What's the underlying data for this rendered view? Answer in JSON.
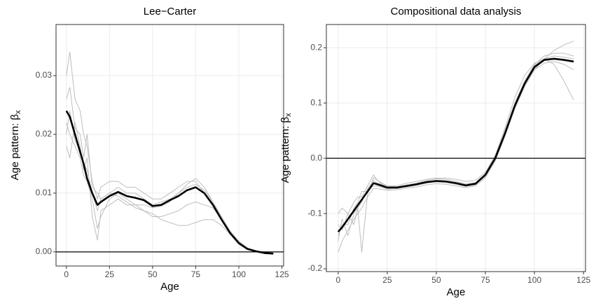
{
  "chart_data": [
    {
      "type": "line",
      "title": "Lee−Carter",
      "x_label": "Age",
      "y_label": "Age pattern:  β",
      "y_label_subscript": "x",
      "x": [
        0,
        2,
        5,
        8,
        10,
        12,
        15,
        18,
        20,
        25,
        30,
        35,
        40,
        45,
        50,
        55,
        60,
        65,
        70,
        75,
        80,
        85,
        90,
        95,
        100,
        105,
        110,
        115,
        120
      ],
      "xlim": [
        -6,
        126
      ],
      "ylim": [
        -0.0024,
        0.0387
      ],
      "xticks": [
        0,
        25,
        50,
        75,
        100,
        125
      ],
      "yticks": [
        {
          "value": 0,
          "label": "0.00"
        },
        0.01,
        0.02,
        0.03
      ],
      "hline": 0,
      "grid": true,
      "series": [
        {
          "color": "#bebebe",
          "line_width": 1,
          "values": [
            0.03,
            0.034,
            0.026,
            0.024,
            0.02,
            0.018,
            0.012,
            0.009,
            0.011,
            0.012,
            0.012,
            0.011,
            0.011,
            0.01,
            0.009,
            0.009,
            0.01,
            0.011,
            0.012,
            0.012,
            0.01,
            0.008,
            0.0055,
            0.003,
            0.0013,
            0.0004,
            0.0,
            -0.0002,
            -0.0003
          ]
        },
        {
          "color": "#bebebe",
          "line_width": 1,
          "values": [
            0.018,
            0.016,
            0.022,
            0.018,
            0.014,
            0.016,
            0.006,
            0.002,
            0.007,
            0.008,
            0.009,
            0.008,
            0.008,
            0.007,
            0.006,
            0.006,
            0.0065,
            0.007,
            0.008,
            0.0085,
            0.008,
            0.0075,
            0.0055,
            0.0035,
            0.0018,
            0.0007,
            0.0002,
            -0.0001,
            -0.0002
          ]
        },
        {
          "color": "#bebebe",
          "line_width": 1,
          "values": [
            0.026,
            0.028,
            0.021,
            0.02,
            0.016,
            0.02,
            0.011,
            0.01,
            0.009,
            0.01,
            0.011,
            0.01,
            0.01,
            0.009,
            0.008,
            0.0085,
            0.009,
            0.01,
            0.011,
            0.0115,
            0.0105,
            0.0085,
            0.006,
            0.0035,
            0.0016,
            0.0005,
            0.0001,
            -0.0002,
            -0.0003
          ]
        },
        {
          "color": "#bebebe",
          "line_width": 1,
          "values": [
            0.022,
            0.02,
            0.018,
            0.016,
            0.013,
            0.012,
            0.009,
            0.004,
            0.006,
            0.009,
            0.01,
            0.009,
            0.008,
            0.008,
            0.0075,
            0.0078,
            0.0085,
            0.01,
            0.0115,
            0.0125,
            0.011,
            0.0085,
            0.0055,
            0.003,
            0.0014,
            0.0004,
            0.0,
            -0.0002,
            -0.0003
          ]
        },
        {
          "color": "#bebebe",
          "line_width": 1,
          "values": [
            0.02,
            0.024,
            0.019,
            0.017,
            0.015,
            0.014,
            0.01,
            0.007,
            0.009,
            0.01,
            0.0095,
            0.0085,
            0.0075,
            0.007,
            0.0065,
            0.0055,
            0.005,
            0.0045,
            0.0045,
            0.005,
            0.0055,
            0.0055,
            0.0045,
            0.003,
            0.0016,
            0.0006,
            0.0002,
            0.0,
            -0.0001
          ]
        },
        {
          "color": "#000000",
          "line_width": 2.6,
          "values": [
            0.024,
            0.023,
            0.02,
            0.017,
            0.015,
            0.0125,
            0.01,
            0.008,
            0.0085,
            0.0095,
            0.0102,
            0.0095,
            0.0092,
            0.0088,
            0.0078,
            0.008,
            0.0088,
            0.0095,
            0.0105,
            0.011,
            0.01,
            0.008,
            0.0055,
            0.0032,
            0.0015,
            0.0005,
            0.0001,
            -0.0002,
            -0.0003
          ]
        }
      ]
    },
    {
      "type": "line",
      "title": "Compositional data analysis",
      "x_label": "Age",
      "y_label": "Age pattern:  β",
      "y_label_subscript": "x",
      "x": [
        0,
        2,
        5,
        8,
        10,
        12,
        15,
        18,
        20,
        25,
        30,
        35,
        40,
        45,
        50,
        55,
        60,
        65,
        70,
        75,
        80,
        85,
        90,
        95,
        100,
        105,
        110,
        115,
        120
      ],
      "xlim": [
        -6,
        126
      ],
      "ylim": [
        -0.205,
        0.242
      ],
      "xticks": [
        0,
        25,
        50,
        75,
        100,
        125
      ],
      "yticks": [
        -0.2,
        -0.1,
        {
          "value": 0,
          "label": "0.0"
        },
        0.1,
        0.2
      ],
      "hline": 0,
      "grid": true,
      "series": [
        {
          "color": "#bebebe",
          "line_width": 1,
          "values": [
            -0.1,
            -0.09,
            -0.1,
            -0.08,
            -0.07,
            -0.07,
            -0.05,
            -0.03,
            -0.04,
            -0.05,
            -0.05,
            -0.045,
            -0.042,
            -0.038,
            -0.036,
            -0.036,
            -0.038,
            -0.042,
            -0.04,
            -0.025,
            0.005,
            0.055,
            0.11,
            0.15,
            0.172,
            0.18,
            0.17,
            0.14,
            0.105
          ]
        },
        {
          "color": "#bebebe",
          "line_width": 1,
          "values": [
            -0.17,
            -0.15,
            -0.13,
            -0.11,
            -0.1,
            -0.09,
            -0.07,
            -0.055,
            -0.055,
            -0.058,
            -0.057,
            -0.054,
            -0.052,
            -0.048,
            -0.046,
            -0.047,
            -0.05,
            -0.053,
            -0.05,
            -0.035,
            -0.005,
            0.04,
            0.09,
            0.13,
            0.16,
            0.18,
            0.195,
            0.205,
            0.212
          ]
        },
        {
          "color": "#bebebe",
          "line_width": 1,
          "values": [
            -0.12,
            -0.13,
            -0.1,
            -0.12,
            -0.09,
            -0.08,
            -0.055,
            -0.04,
            -0.045,
            -0.05,
            -0.052,
            -0.048,
            -0.045,
            -0.04,
            -0.037,
            -0.038,
            -0.042,
            -0.046,
            -0.044,
            -0.028,
            0.002,
            0.05,
            0.1,
            0.14,
            0.17,
            0.185,
            0.19,
            0.19,
            0.185
          ]
        },
        {
          "color": "#bebebe",
          "line_width": 1,
          "values": [
            -0.14,
            -0.12,
            -0.12,
            -0.09,
            -0.08,
            -0.06,
            -0.06,
            -0.05,
            -0.05,
            -0.056,
            -0.054,
            -0.052,
            -0.049,
            -0.045,
            -0.043,
            -0.044,
            -0.047,
            -0.051,
            -0.048,
            -0.032,
            -0.002,
            0.045,
            0.09,
            0.13,
            0.16,
            0.172,
            0.175,
            0.17,
            0.16
          ]
        },
        {
          "color": "#bebebe",
          "line_width": 1,
          "values": [
            -0.15,
            -0.11,
            -0.14,
            -0.1,
            -0.09,
            -0.17,
            -0.065,
            -0.035,
            -0.04,
            -0.054,
            -0.055,
            -0.051,
            -0.048,
            -0.045,
            -0.042,
            -0.043,
            -0.046,
            -0.05,
            -0.047,
            -0.03,
            0.0,
            0.048,
            0.098,
            0.138,
            0.168,
            0.18,
            0.185,
            0.183,
            0.18
          ]
        },
        {
          "color": "#000000",
          "line_width": 2.6,
          "values": [
            -0.133,
            -0.125,
            -0.11,
            -0.095,
            -0.085,
            -0.075,
            -0.06,
            -0.045,
            -0.047,
            -0.053,
            -0.053,
            -0.05,
            -0.047,
            -0.043,
            -0.041,
            -0.042,
            -0.045,
            -0.049,
            -0.046,
            -0.03,
            0.0,
            0.045,
            0.095,
            0.135,
            0.165,
            0.178,
            0.18,
            0.178,
            0.175
          ]
        }
      ]
    }
  ]
}
